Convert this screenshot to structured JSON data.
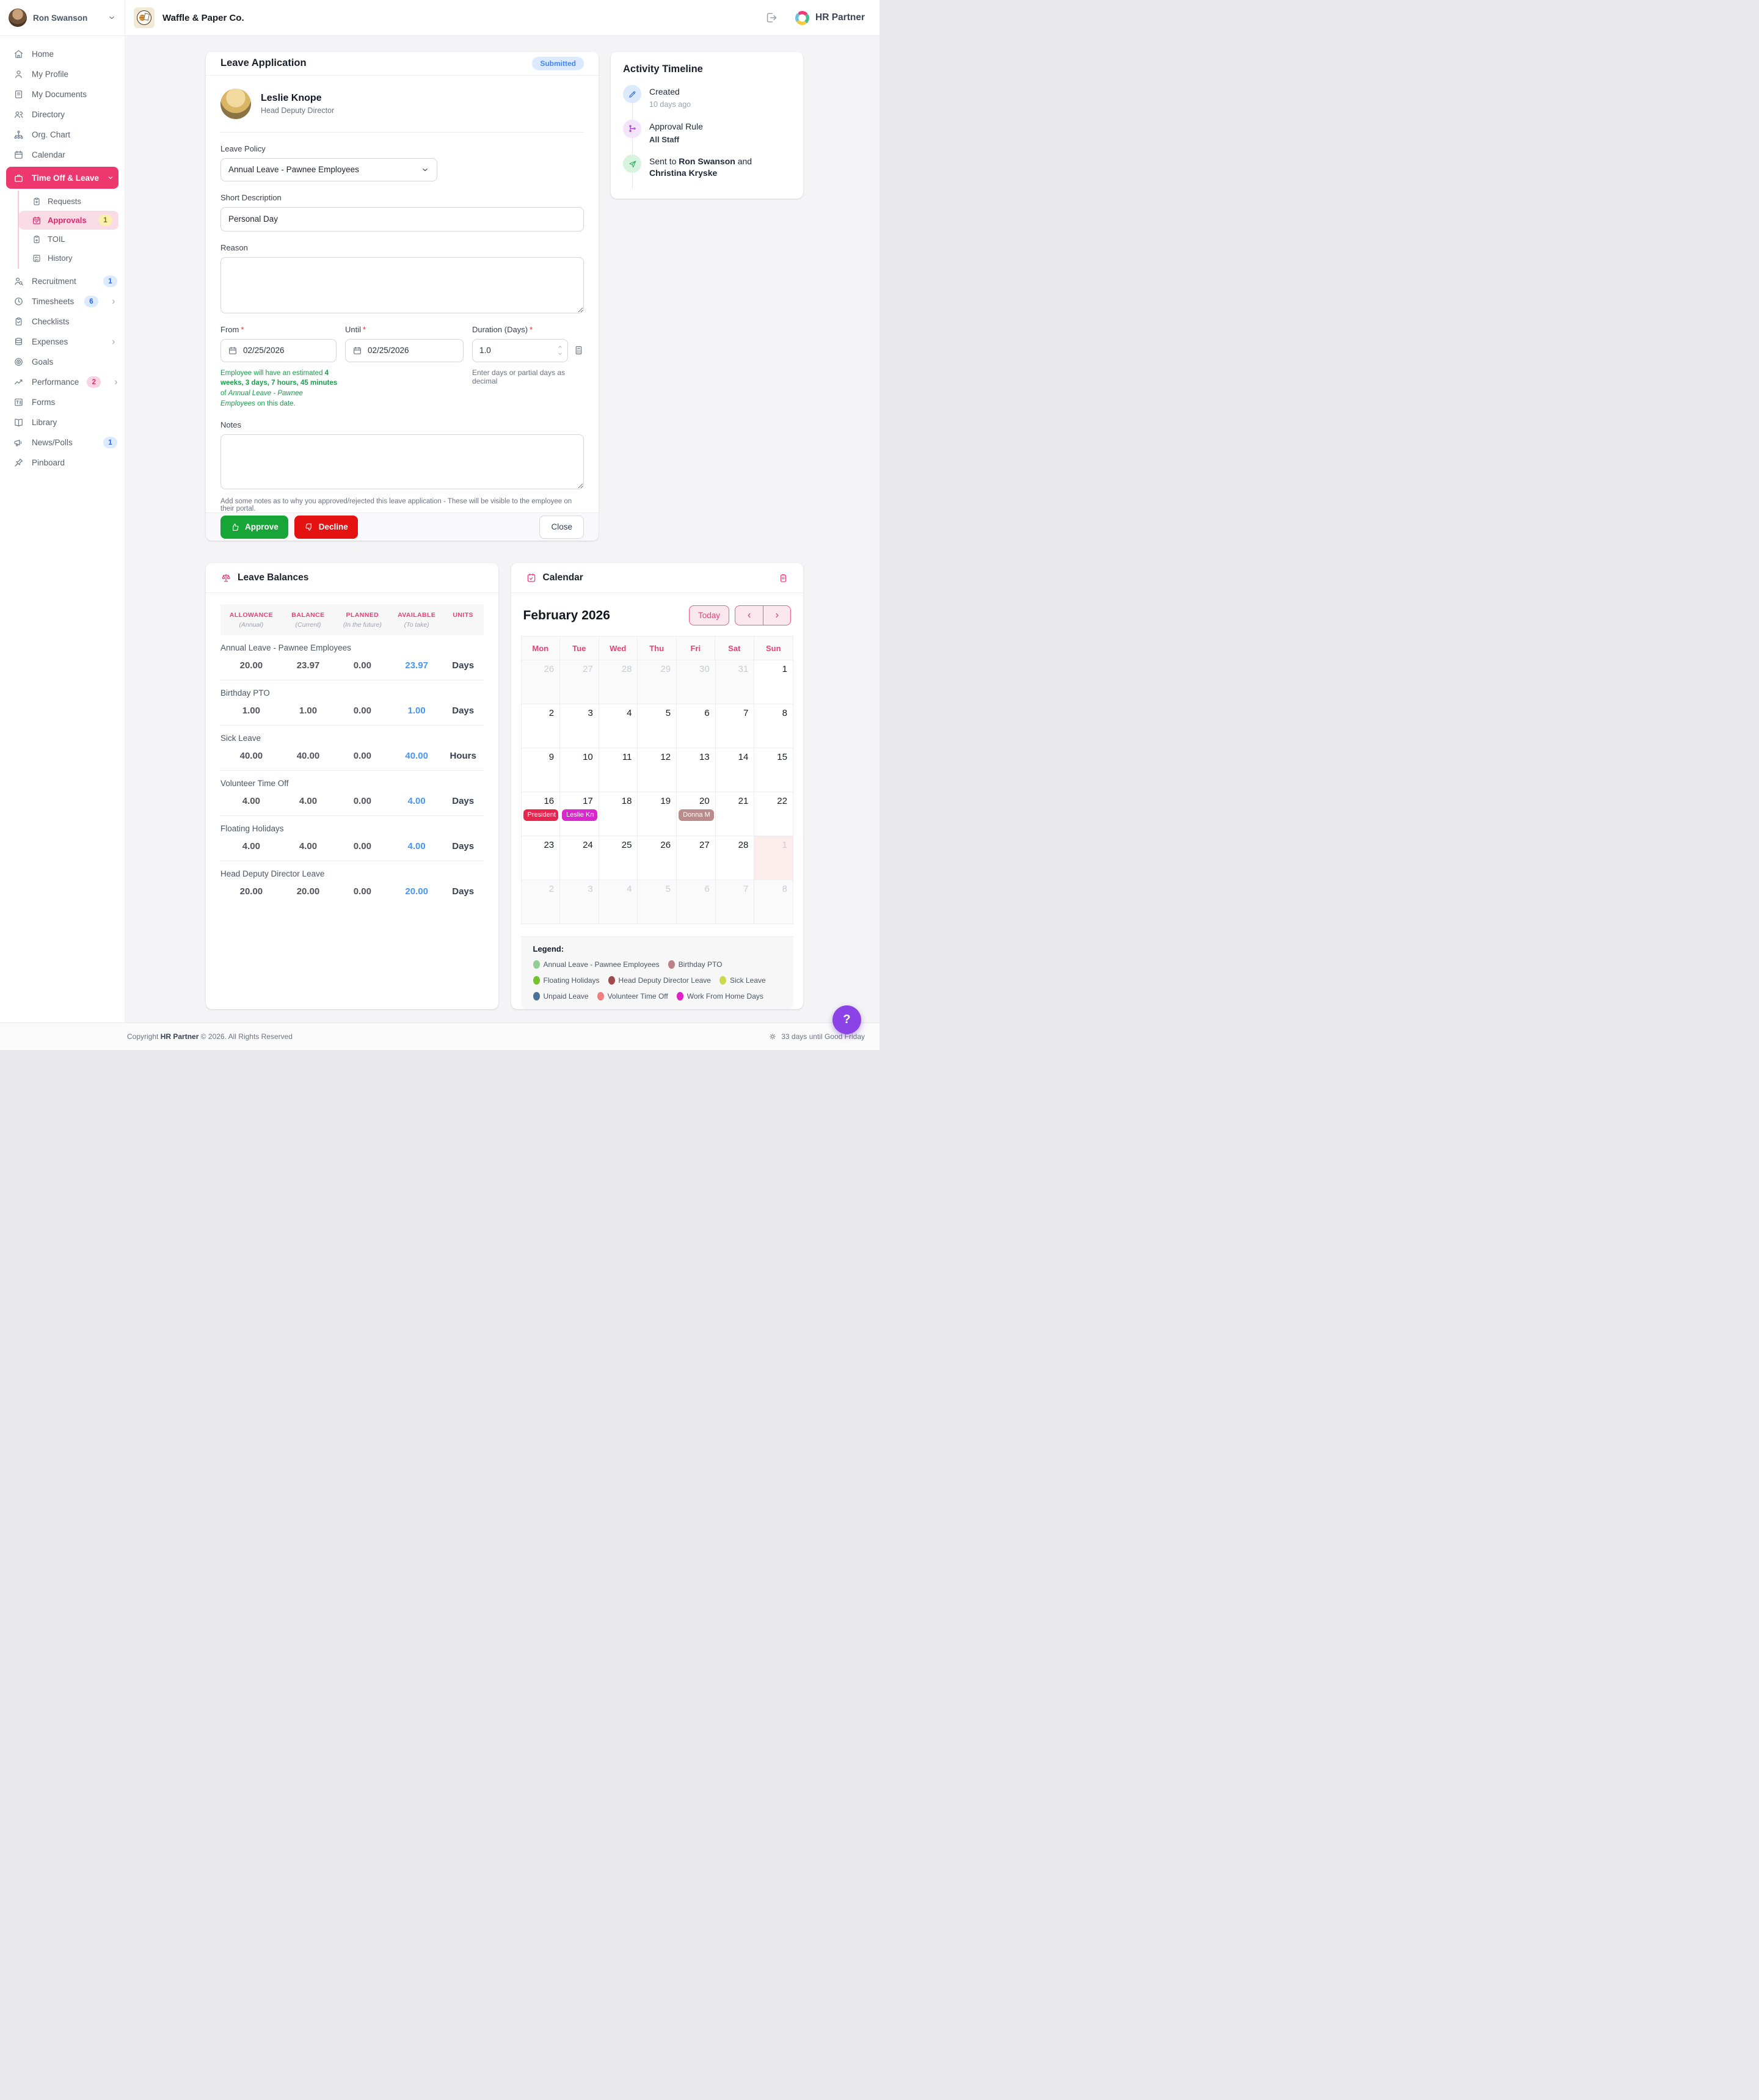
{
  "user": {
    "name": "Ron Swanson"
  },
  "header": {
    "company": "Waffle & Paper Co.",
    "brand_bold": "HR",
    "brand_rest": " Partner",
    "logout_icon": "exit-icon"
  },
  "sidebar": {
    "items": [
      {
        "id": "home",
        "label": "Home",
        "icon": "home"
      },
      {
        "id": "my-profile",
        "label": "My Profile",
        "icon": "user"
      },
      {
        "id": "my-documents",
        "label": "My Documents",
        "icon": "document"
      },
      {
        "id": "directory",
        "label": "Directory",
        "icon": "users"
      },
      {
        "id": "org-chart",
        "label": "Org. Chart",
        "icon": "org"
      },
      {
        "id": "calendar",
        "label": "Calendar",
        "icon": "calendar"
      },
      {
        "id": "time-off-leave",
        "label": "Time Off & Leave",
        "icon": "briefcase",
        "active": true,
        "chevron": "down",
        "children": [
          {
            "id": "requests",
            "label": "Requests",
            "icon": "clipboard-plus"
          },
          {
            "id": "approvals",
            "label": "Approvals",
            "icon": "calendar-check",
            "active": true,
            "badge": {
              "text": "1",
              "style": "yellow"
            }
          },
          {
            "id": "toil",
            "label": "TOIL",
            "icon": "clipboard-add"
          },
          {
            "id": "history",
            "label": "History",
            "icon": "checklist"
          }
        ]
      },
      {
        "id": "recruitment",
        "label": "Recruitment",
        "icon": "user-search",
        "badge": {
          "text": "1",
          "style": "blue"
        }
      },
      {
        "id": "timesheets",
        "label": "Timesheets",
        "icon": "clock",
        "badge": {
          "text": "6",
          "style": "blue"
        },
        "chevron": "right"
      },
      {
        "id": "checklists",
        "label": "Checklists",
        "icon": "clipboard-check"
      },
      {
        "id": "expenses",
        "label": "Expenses",
        "icon": "coins",
        "chevron": "right"
      },
      {
        "id": "goals",
        "label": "Goals",
        "icon": "target"
      },
      {
        "id": "performance",
        "label": "Performance",
        "icon": "trend",
        "badge": {
          "text": "2",
          "style": "pink"
        },
        "chevron": "right"
      },
      {
        "id": "forms",
        "label": "Forms",
        "icon": "form"
      },
      {
        "id": "library",
        "label": "Library",
        "icon": "book"
      },
      {
        "id": "news-polls",
        "label": "News/Polls",
        "icon": "megaphone",
        "badge": {
          "text": "1",
          "style": "blue"
        }
      },
      {
        "id": "pinboard",
        "label": "Pinboard",
        "icon": "pin"
      }
    ]
  },
  "leave_application": {
    "title": "Leave Application",
    "status": "Submitted",
    "required_mark": "*",
    "employee": {
      "name": "Leslie Knope",
      "title": "Head Deputy Director"
    },
    "policy": {
      "label": "Leave Policy",
      "value": "Annual Leave - Pawnee Employees"
    },
    "short_description": {
      "label": "Short Description",
      "value": "Personal Day"
    },
    "reason": {
      "label": "Reason",
      "value": ""
    },
    "from": {
      "label": "From",
      "value": "02/25/2026"
    },
    "until": {
      "label": "Until",
      "value": "02/25/2026"
    },
    "duration": {
      "label": "Duration (Days)",
      "value": "1.0",
      "hint": "Enter days or partial days as decimal"
    },
    "balance_note": {
      "prefix": "Employee will have an estimated ",
      "bold": "4 weeks, 3 days, 7 hours, 45 minutes",
      "mid": " of ",
      "policy": "Annual Leave - Pawnee Employees",
      "suffix": " on this date."
    },
    "notes": {
      "label": "Notes",
      "value": "",
      "helper": "Add some notes as to why you approved/rejected this leave application - These will be visible to the employee on their portal."
    },
    "actions": {
      "approve": "Approve",
      "decline": "Decline",
      "close": "Close"
    }
  },
  "activity_timeline": {
    "title": "Activity Timeline",
    "items": [
      {
        "icon": "pencil",
        "color": "blue",
        "title": "Created",
        "subtitle": "10 days ago"
      },
      {
        "icon": "flow",
        "color": "purple",
        "title": "Approval Rule",
        "subtitle": "All Staff",
        "subtitle_strong": true
      },
      {
        "icon": "send",
        "color": "green",
        "parts": [
          {
            "t": "Sent to "
          },
          {
            "t": "Ron Swanson",
            "b": true
          },
          {
            "t": " and "
          },
          {
            "t": "Christina Kryske",
            "b": true
          }
        ]
      }
    ]
  },
  "leave_balances": {
    "title": "Leave Balances",
    "icon": "scale-icon",
    "columns": [
      {
        "k": "ALLOWANCE",
        "s": "(Annual)"
      },
      {
        "k": "BALANCE",
        "s": "(Current)"
      },
      {
        "k": "PLANNED",
        "s": "(In the future)"
      },
      {
        "k": "AVAILABLE",
        "s": "(To take)"
      },
      {
        "k": "UNITS",
        "s": ""
      }
    ],
    "rows": [
      {
        "policy": "Annual Leave - Pawnee Employees",
        "allowance": "20.00",
        "balance": "23.97",
        "planned": "0.00",
        "available": "23.97",
        "units": "Days"
      },
      {
        "policy": "Birthday PTO",
        "allowance": "1.00",
        "balance": "1.00",
        "planned": "0.00",
        "available": "1.00",
        "units": "Days"
      },
      {
        "policy": "Sick Leave",
        "allowance": "40.00",
        "balance": "40.00",
        "planned": "0.00",
        "available": "40.00",
        "units": "Hours"
      },
      {
        "policy": "Volunteer Time Off",
        "allowance": "4.00",
        "balance": "4.00",
        "planned": "0.00",
        "available": "4.00",
        "units": "Days"
      },
      {
        "policy": "Floating Holidays",
        "allowance": "4.00",
        "balance": "4.00",
        "planned": "0.00",
        "available": "4.00",
        "units": "Days"
      },
      {
        "policy": "Head Deputy Director Leave",
        "allowance": "20.00",
        "balance": "20.00",
        "planned": "0.00",
        "available": "20.00",
        "units": "Days"
      }
    ]
  },
  "calendar": {
    "title": "Calendar",
    "icon": "calendar-check-icon",
    "export_icon": "clipboard-icon",
    "month_label": "February 2026",
    "today_label": "Today",
    "weekdays": [
      "Mon",
      "Tue",
      "Wed",
      "Thu",
      "Fri",
      "Sat",
      "Sun"
    ],
    "weeks": [
      [
        {
          "d": "26",
          "out": true
        },
        {
          "d": "27",
          "out": true
        },
        {
          "d": "28",
          "out": true
        },
        {
          "d": "29",
          "out": true
        },
        {
          "d": "30",
          "out": true
        },
        {
          "d": "31",
          "out": true
        },
        {
          "d": "1"
        }
      ],
      [
        {
          "d": "2"
        },
        {
          "d": "3"
        },
        {
          "d": "4"
        },
        {
          "d": "5"
        },
        {
          "d": "6"
        },
        {
          "d": "7"
        },
        {
          "d": "8"
        }
      ],
      [
        {
          "d": "9"
        },
        {
          "d": "10"
        },
        {
          "d": "11"
        },
        {
          "d": "12"
        },
        {
          "d": "13"
        },
        {
          "d": "14"
        },
        {
          "d": "15"
        }
      ],
      [
        {
          "d": "16",
          "event": {
            "label": "President",
            "color": "#e8254f"
          }
        },
        {
          "d": "17",
          "event": {
            "label": "Leslie Kn",
            "color": "#d929cc"
          }
        },
        {
          "d": "18"
        },
        {
          "d": "19"
        },
        {
          "d": "20",
          "event": {
            "label": "Donna M",
            "color": "#b98b8b"
          }
        },
        {
          "d": "21"
        },
        {
          "d": "22"
        }
      ],
      [
        {
          "d": "23"
        },
        {
          "d": "24"
        },
        {
          "d": "25"
        },
        {
          "d": "26"
        },
        {
          "d": "27"
        },
        {
          "d": "28"
        },
        {
          "d": "1",
          "out": true,
          "hl": true
        }
      ],
      [
        {
          "d": "2",
          "out": true
        },
        {
          "d": "3",
          "out": true
        },
        {
          "d": "4",
          "out": true
        },
        {
          "d": "5",
          "out": true
        },
        {
          "d": "6",
          "out": true
        },
        {
          "d": "7",
          "out": true
        },
        {
          "d": "8",
          "out": true
        }
      ]
    ],
    "legend": {
      "title": "Legend:",
      "items": [
        {
          "label": "Annual Leave - Pawnee Employees",
          "color": "#94ce94"
        },
        {
          "label": "Birthday PTO",
          "color": "#bb8186"
        },
        {
          "label": "Floating Holidays",
          "color": "#72c32c"
        },
        {
          "label": "Head Deputy Director Leave",
          "color": "#a04b4b"
        },
        {
          "label": "Sick Leave",
          "color": "#ccd94e"
        },
        {
          "label": "Unpaid Leave",
          "color": "#4a7296"
        },
        {
          "label": "Volunteer Time Off",
          "color": "#ef8082"
        },
        {
          "label": "Work From Home Days",
          "color": "#e01fc4"
        }
      ]
    }
  },
  "footer": {
    "copyright_prefix": "Copyright ",
    "brand": "HR Partner",
    "copyright_suffix": " © 2026. All Rights Reserved",
    "icon": "sun-icon",
    "countdown": "33 days until Good Friday"
  },
  "help": {
    "label": "?"
  }
}
